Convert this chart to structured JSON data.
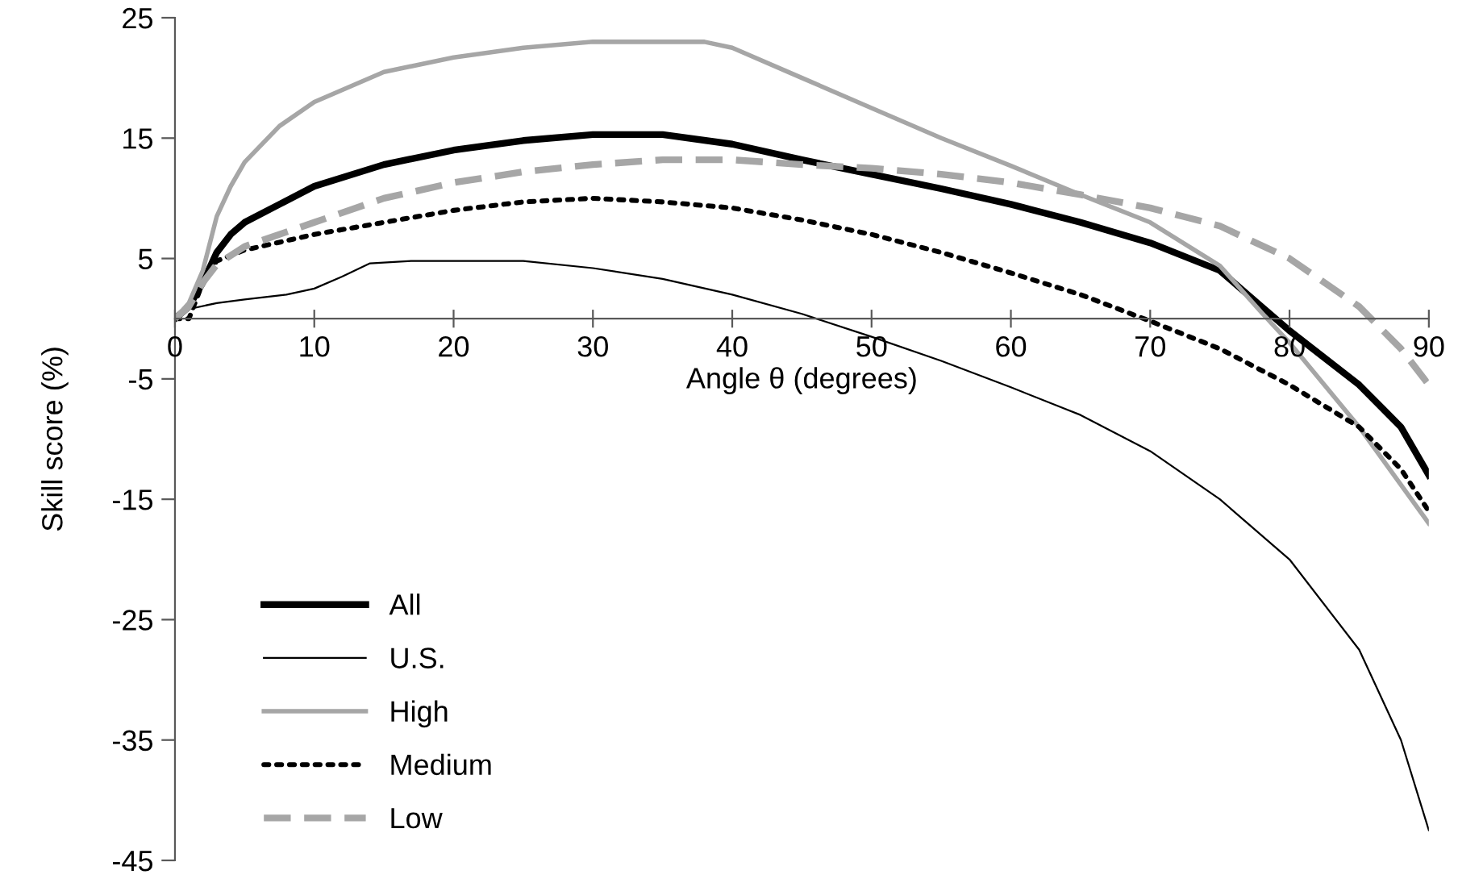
{
  "chart_data": {
    "type": "line",
    "xlabel": "Angle θ (degrees)",
    "ylabel": "Skill score (%)",
    "xlim": [
      0,
      90
    ],
    "xticks": [
      0,
      10,
      20,
      30,
      40,
      50,
      60,
      70,
      80,
      90
    ],
    "ylim": [
      -45,
      25
    ],
    "yticks": [
      -45,
      -35,
      -25,
      -15,
      -5,
      5,
      15,
      25
    ],
    "grid": false,
    "legend": "bottom left",
    "marker": "none",
    "series": [
      {
        "name": "All",
        "color": "#000000",
        "line_style": "solid",
        "x": [
          0,
          1,
          2,
          3,
          4,
          5,
          7.5,
          10,
          15,
          20,
          25,
          30,
          35,
          40,
          45,
          50,
          55,
          60,
          65,
          70,
          75,
          78,
          80,
          85,
          88,
          90
        ],
        "values": [
          0,
          1,
          3,
          5.5,
          7,
          8,
          9.5,
          11,
          12.8,
          14,
          14.8,
          15.3,
          15.3,
          14.5,
          13.2,
          12,
          10.8,
          9.5,
          8,
          6.3,
          4,
          1,
          -1,
          -5.5,
          -9,
          -13
        ]
      },
      {
        "name": "U.S.",
        "color": "#000000",
        "line_style": "solid",
        "x": [
          0,
          1,
          3,
          5,
          8,
          10,
          12,
          14,
          17,
          25,
          30,
          35,
          40,
          45,
          50,
          55,
          60,
          65,
          70,
          75,
          80,
          85,
          88,
          90
        ],
        "values": [
          0,
          0.8,
          1.3,
          1.6,
          2,
          2.5,
          3.5,
          4.6,
          4.8,
          4.8,
          4.2,
          3.3,
          2,
          0.4,
          -1.5,
          -3.5,
          -5.7,
          -8,
          -11,
          -15,
          -20,
          -27.5,
          -35,
          -42.5
        ]
      },
      {
        "name": "High",
        "color": "#a6a6a6",
        "line_style": "solid",
        "x": [
          0,
          1,
          2,
          3,
          4,
          5,
          7.5,
          10,
          15,
          20,
          25,
          30,
          35,
          38,
          40,
          45,
          50,
          55,
          60,
          65,
          70,
          75,
          78,
          80,
          85,
          90
        ],
        "values": [
          0,
          1.3,
          4,
          8.5,
          11,
          13,
          16,
          18,
          20.5,
          21.7,
          22.5,
          23,
          23,
          23,
          22.5,
          20,
          17.5,
          15,
          12.7,
          10.3,
          8,
          4.4,
          0.5,
          -2,
          -9,
          -17
        ]
      },
      {
        "name": "Medium",
        "color": "#000000",
        "line_style": "dotted",
        "x": [
          0,
          1,
          2,
          3,
          5,
          10,
          15,
          20,
          25,
          30,
          35,
          40,
          45,
          50,
          55,
          60,
          65,
          70,
          75,
          80,
          85,
          88,
          90
        ],
        "values": [
          0,
          0,
          3,
          4.8,
          5.7,
          7,
          8,
          9,
          9.7,
          10,
          9.7,
          9.2,
          8.2,
          7,
          5.5,
          3.8,
          2,
          -0.2,
          -2.5,
          -5.5,
          -9,
          -12.5,
          -16
        ]
      },
      {
        "name": "Low",
        "color": "#a6a6a6",
        "line_style": "dashed",
        "x": [
          0,
          1,
          2,
          3,
          5,
          10,
          15,
          20,
          25,
          30,
          35,
          40,
          45,
          50,
          55,
          60,
          65,
          70,
          75,
          80,
          85,
          88,
          90
        ],
        "values": [
          0,
          1,
          3,
          4.5,
          6,
          8,
          10,
          11.3,
          12.2,
          12.8,
          13.2,
          13.2,
          12.8,
          12.5,
          12,
          11.3,
          10.3,
          9.2,
          7.7,
          5,
          1,
          -2.5,
          -5.5
        ]
      }
    ]
  }
}
